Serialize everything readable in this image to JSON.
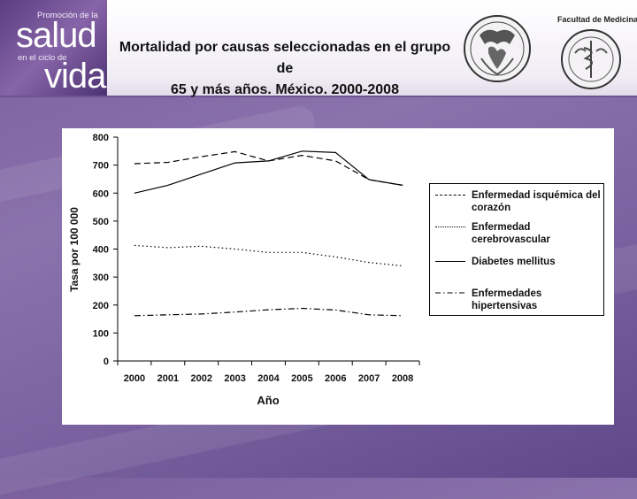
{
  "header": {
    "logo": {
      "line1": "Promoción de la",
      "word1": "salud",
      "line2": "en el ciclo de",
      "word2": "vida"
    },
    "title_line1": "Mortalidad por causas seleccionadas en el grupo de",
    "title_line2": "65 y más años. México. 2000-2008",
    "faculty_label": "Facultad de Medicina"
  },
  "colors": {
    "header_bg": "#ffffff",
    "brand_purple": "#7a5f9c",
    "line": "#000000"
  },
  "chart_data": {
    "type": "line",
    "x": [
      "2000",
      "2001",
      "2002",
      "2003",
      "2004",
      "2005",
      "2006",
      "2007",
      "2008"
    ],
    "xlabel": "Año",
    "ylabel": "Tasa por 100 000",
    "ylim": [
      0,
      800
    ],
    "yticks": [
      0,
      100,
      200,
      300,
      400,
      500,
      600,
      700,
      800
    ],
    "grid": false,
    "legend": "right",
    "series": [
      {
        "name": "Enfermedad isquémica del corazón",
        "values": [
          705,
          710,
          730,
          748,
          715,
          735,
          715,
          648,
          628
        ],
        "dash": "dashed"
      },
      {
        "name": "Enfermedad cerebrovascular",
        "values": [
          413,
          405,
          410,
          400,
          388,
          388,
          372,
          352,
          340
        ],
        "dash": "dotted"
      },
      {
        "name": "Diabetes mellitus",
        "values": [
          600,
          628,
          668,
          708,
          715,
          750,
          745,
          648,
          628
        ],
        "dash": "solid"
      },
      {
        "name": "Enfermedades hipertensivas",
        "values": [
          162,
          165,
          168,
          175,
          183,
          188,
          182,
          165,
          162
        ],
        "dash": "dashdot"
      }
    ]
  }
}
